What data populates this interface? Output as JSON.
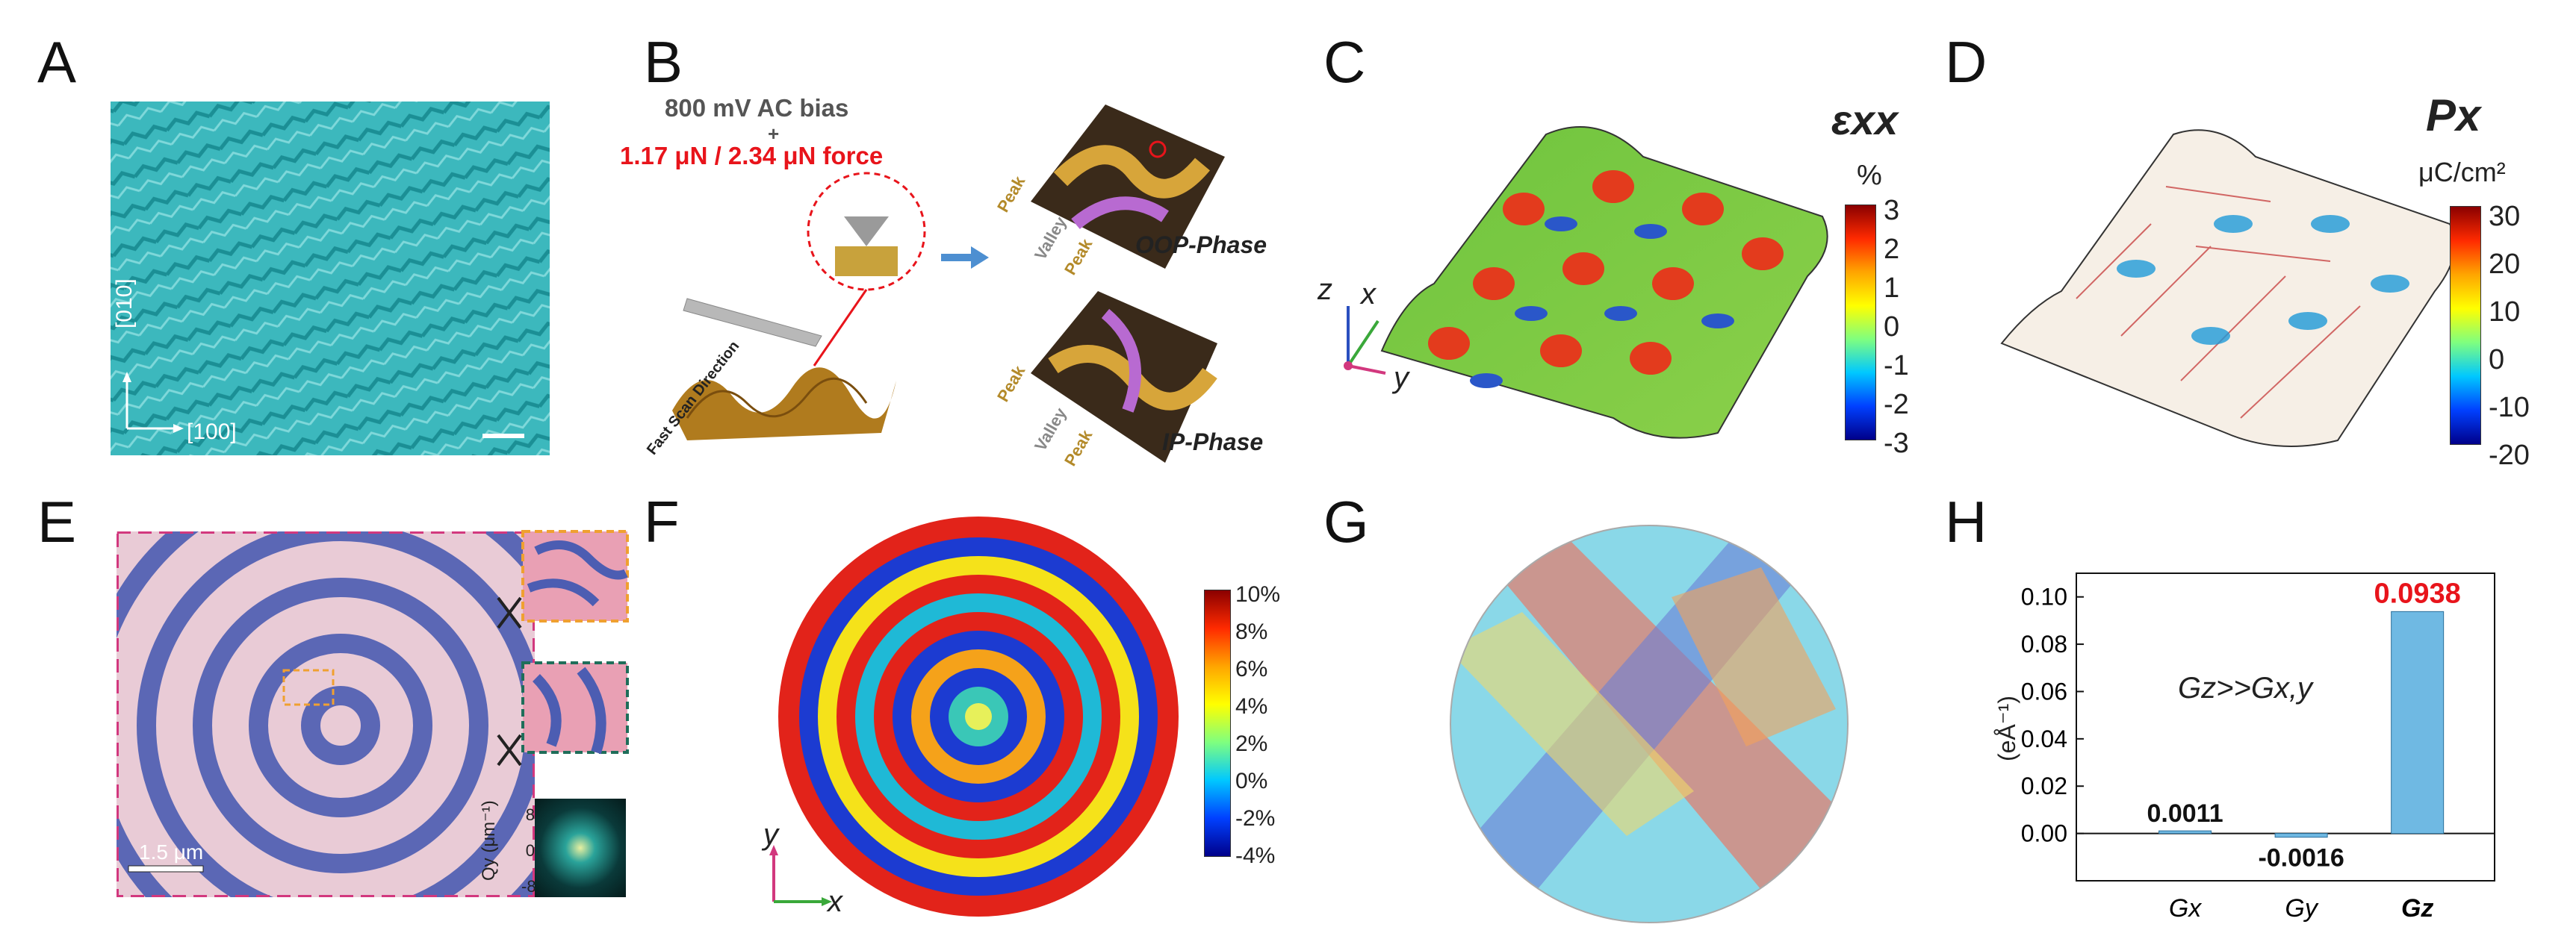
{
  "panels": {
    "A": {
      "letter": "A",
      "axis_y": "[010]",
      "axis_x": "[100]"
    },
    "B": {
      "letter": "B",
      "bias": "800 mV AC bias",
      "plus": "+",
      "force": "1.17 μN / 2.34 μN force",
      "scan_dir": "Fast Scan Direction",
      "oop": "OOP-Phase",
      "ip": "IP-Phase",
      "peak": "Peak",
      "valley": "Valley"
    },
    "C": {
      "letter": "C",
      "symbol": "εxx",
      "unit": "%",
      "ticks": [
        "3",
        "2",
        "1",
        "0",
        "-1",
        "-2",
        "-3"
      ],
      "axes": {
        "z": "z",
        "x": "x",
        "y": "y"
      }
    },
    "D": {
      "letter": "D",
      "symbol": "Px",
      "unit": "μC/cm²",
      "ticks": [
        "30",
        "20",
        "10",
        "0",
        "-10",
        "-20"
      ]
    },
    "E": {
      "letter": "E",
      "scale": "1.5 μm",
      "qy": "Qy (μm⁻¹)",
      "qy_ticks": [
        "8",
        "0",
        "-8"
      ]
    },
    "F": {
      "letter": "F",
      "ticks": [
        "10%",
        "8%",
        "6%",
        "4%",
        "2%",
        "0%",
        "-2%",
        "-4%"
      ],
      "axes": {
        "y": "y",
        "x": "x"
      }
    },
    "G": {
      "letter": "G"
    },
    "H": {
      "letter": "H",
      "annotation": "Gz>>Gx,y",
      "ylabel": "(eÅ⁻¹)"
    }
  },
  "chart_data": {
    "type": "bar",
    "categories": [
      "Gx",
      "Gy",
      "Gz"
    ],
    "values": [
      0.0011,
      -0.0016,
      0.0938
    ],
    "value_labels": [
      "0.0011",
      "-0.0016",
      "0.0938"
    ],
    "ylabel": "(eÅ⁻¹)",
    "ylim": [
      -0.02,
      0.11
    ],
    "yticks": [
      "0.10",
      "0.08",
      "0.06",
      "0.04",
      "0.02",
      "0.00"
    ],
    "annotation": "Gz>>Gx,y",
    "highlight_color": "#e8141b",
    "bar_color": "#6fb9e3"
  }
}
